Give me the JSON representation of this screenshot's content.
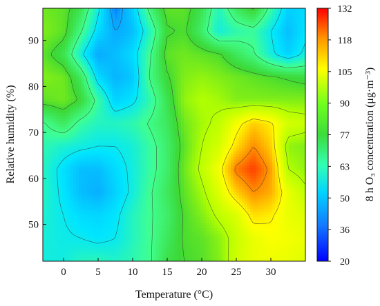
{
  "chart_data": {
    "type": "heatmap",
    "subtype": "filled-contour",
    "title": "",
    "xlabel": "Temperature (°C)",
    "ylabel": "Relative humidity (%)",
    "colorbar_label": "8 h O₃ concentration (μg·m⁻³)",
    "xlim": [
      -3,
      35
    ],
    "ylim": [
      42,
      97
    ],
    "x_ticks": [
      0,
      5,
      10,
      15,
      20,
      25,
      30
    ],
    "x_tick_labels": [
      "0",
      "5",
      "10",
      "15",
      "20",
      "25",
      "30"
    ],
    "y_ticks": [
      50,
      60,
      70,
      80,
      90
    ],
    "y_tick_labels": [
      "50",
      "60",
      "70",
      "80",
      "90"
    ],
    "colorbar_ticks": [
      20,
      36,
      50,
      63,
      77,
      90,
      105,
      118,
      132
    ],
    "colorbar_tick_labels": [
      "20",
      "36",
      "50",
      "63",
      "77",
      "90",
      "105",
      "118",
      "132"
    ],
    "value_range": [
      20,
      132
    ],
    "colorscale": [
      "#0000ff",
      "#0aa0ff",
      "#00e5ff",
      "#40ff90",
      "#3cd836",
      "#b4ff00",
      "#ffff00",
      "#ff8c00",
      "#ff0000"
    ],
    "grid": false,
    "x": [
      -3,
      0,
      2.5,
      5,
      7.5,
      10,
      12.5,
      15,
      17.5,
      20,
      22.5,
      25,
      27.5,
      30,
      32.5,
      35
    ],
    "y": [
      42,
      47,
      52,
      57,
      62,
      67,
      72,
      77,
      82,
      87,
      92,
      97
    ],
    "z": [
      [
        52,
        52,
        56,
        57,
        55,
        58,
        62,
        73,
        77,
        79,
        84,
        95,
        100,
        101,
        100,
        98
      ],
      [
        53,
        51,
        50,
        48,
        50,
        56,
        62,
        70,
        78,
        80,
        85,
        94,
        100,
        103,
        102,
        100
      ],
      [
        54,
        50,
        46,
        45,
        48,
        56,
        62,
        68,
        78,
        84,
        92,
        97,
        108,
        106,
        100,
        98
      ],
      [
        56,
        48,
        40,
        37,
        44,
        52,
        62,
        70,
        80,
        88,
        98,
        110,
        118,
        114,
        100,
        92
      ],
      [
        56,
        47,
        40,
        40,
        46,
        52,
        60,
        68,
        82,
        92,
        102,
        120,
        126,
        116,
        90,
        86
      ],
      [
        58,
        54,
        52,
        50,
        50,
        53,
        60,
        68,
        80,
        90,
        96,
        108,
        118,
        110,
        86,
        84
      ],
      [
        62,
        70,
        60,
        56,
        56,
        58,
        64,
        70,
        82,
        88,
        92,
        102,
        110,
        106,
        96,
        94
      ],
      [
        80,
        82,
        76,
        60,
        44,
        48,
        58,
        72,
        86,
        90,
        88,
        84,
        84,
        84,
        84,
        84
      ],
      [
        84,
        82,
        70,
        46,
        38,
        42,
        64,
        76,
        84,
        86,
        84,
        82,
        80,
        78,
        76,
        74
      ],
      [
        80,
        72,
        52,
        36,
        40,
        46,
        62,
        80,
        82,
        80,
        78,
        70,
        64,
        52,
        44,
        52
      ],
      [
        84,
        80,
        64,
        46,
        36,
        40,
        56,
        76,
        78,
        68,
        52,
        58,
        60,
        50,
        40,
        48
      ],
      [
        82,
        80,
        72,
        52,
        30,
        44,
        66,
        80,
        80,
        72,
        56,
        70,
        78,
        60,
        44,
        46
      ]
    ]
  }
}
